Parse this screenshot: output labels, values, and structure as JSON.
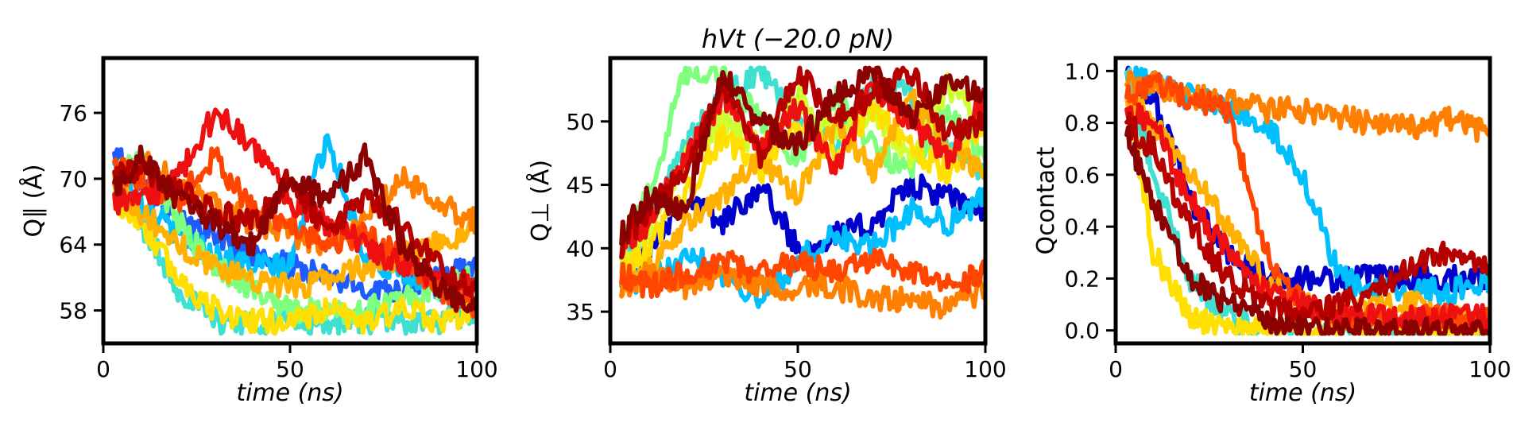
{
  "figure": {
    "title": "hVt (−20.0 pN)"
  },
  "colors": {
    "palette": [
      "#0000cd",
      "#1e5cff",
      "#00bfff",
      "#40e0d0",
      "#7fff7f",
      "#cfff30",
      "#ffe000",
      "#ffb000",
      "#ff7f00",
      "#ff4500",
      "#ee1010",
      "#b50000",
      "#8b0000"
    ]
  },
  "chart_data": [
    {
      "type": "line",
      "title": "",
      "xlabel": "time (ns)",
      "ylabel": "Q∥ (Å)",
      "xlim": [
        0,
        100
      ],
      "ylim": [
        55,
        81
      ],
      "xticks": [
        0,
        50,
        100
      ],
      "yticks": [
        58,
        64,
        70,
        76
      ],
      "xtick_labels": [
        "0",
        "50",
        "100"
      ],
      "ytick_labels": [
        "58",
        "64",
        "70",
        "76"
      ],
      "grid": false,
      "legend": "none",
      "x": [
        3,
        10,
        20,
        30,
        40,
        50,
        60,
        70,
        80,
        90,
        100
      ],
      "series": [
        {
          "color": "#1e5cff",
          "values": [
            72,
            70,
            66,
            65,
            63,
            62,
            61,
            60,
            60,
            61,
            62
          ]
        },
        {
          "color": "#00bfff",
          "values": [
            71,
            68,
            65,
            63,
            62,
            62,
            74,
            63,
            61,
            60,
            60
          ]
        },
        {
          "color": "#40e0d0",
          "values": [
            70,
            66,
            60,
            57,
            57,
            57,
            57,
            57,
            57,
            57,
            58
          ]
        },
        {
          "color": "#7fff7f",
          "values": [
            70,
            72,
            66,
            62,
            60,
            58,
            58,
            58,
            59,
            60,
            61
          ]
        },
        {
          "color": "#ffe000",
          "values": [
            68,
            66,
            61,
            58,
            57,
            57,
            58,
            57,
            58,
            57,
            58
          ]
        },
        {
          "color": "#ffb000",
          "values": [
            70,
            67,
            64,
            62,
            61,
            60,
            61,
            62,
            63,
            64,
            66
          ]
        },
        {
          "color": "#ff7f00",
          "values": [
            69,
            72,
            70,
            68,
            66,
            65,
            64,
            66,
            70,
            68,
            66
          ]
        },
        {
          "color": "#ff4500",
          "values": [
            71,
            70,
            68,
            72,
            67,
            66,
            64,
            65,
            63,
            60,
            58
          ]
        },
        {
          "color": "#ee1010",
          "values": [
            68,
            68,
            70,
            76,
            73,
            68,
            66,
            64,
            62,
            61,
            60
          ]
        },
        {
          "color": "#b50000",
          "values": [
            70,
            71,
            69,
            67,
            66,
            70,
            65,
            68,
            66,
            62,
            60
          ]
        },
        {
          "color": "#8b0000",
          "values": [
            69,
            72,
            68,
            66,
            64,
            70,
            68,
            72,
            64,
            60,
            58
          ]
        }
      ]
    },
    {
      "type": "line",
      "title": "hVt (−20.0 pN)",
      "xlabel": "time (ns)",
      "ylabel": "Q⊥ (Å)",
      "xlim": [
        0,
        100
      ],
      "ylim": [
        32.5,
        55
      ],
      "xticks": [
        0,
        50,
        100
      ],
      "yticks": [
        35,
        40,
        45,
        50
      ],
      "xtick_labels": [
        "0",
        "50",
        "100"
      ],
      "ytick_labels": [
        "35",
        "40",
        "45",
        "50"
      ],
      "grid": false,
      "legend": "none",
      "x": [
        3,
        10,
        20,
        30,
        40,
        50,
        60,
        70,
        80,
        90,
        100
      ],
      "series": [
        {
          "color": "#0000cd",
          "values": [
            38,
            40,
            44,
            42,
            45,
            40,
            41,
            42,
            45,
            44,
            43
          ]
        },
        {
          "color": "#00bfff",
          "values": [
            38,
            37,
            40,
            38,
            36,
            39,
            41,
            40,
            43,
            42,
            44
          ]
        },
        {
          "color": "#40e0d0",
          "values": [
            39,
            42,
            48,
            52,
            54,
            50,
            48,
            53,
            52,
            48,
            46
          ]
        },
        {
          "color": "#7fff7f",
          "values": [
            40,
            44,
            54,
            54,
            50,
            47,
            52,
            48,
            46,
            51,
            47
          ]
        },
        {
          "color": "#cfff30",
          "values": [
            39,
            41,
            47,
            50,
            48,
            52,
            49,
            51,
            47,
            53,
            49
          ]
        },
        {
          "color": "#ffe000",
          "values": [
            38,
            40,
            44,
            49,
            46,
            50,
            47,
            51,
            48,
            46,
            50
          ]
        },
        {
          "color": "#ffb000",
          "values": [
            37,
            38,
            42,
            44,
            47,
            44,
            50,
            46,
            52,
            48,
            46
          ]
        },
        {
          "color": "#ff7f00",
          "values": [
            37,
            38,
            37,
            38,
            37,
            37,
            37,
            36,
            36,
            35,
            37
          ]
        },
        {
          "color": "#ff4500",
          "values": [
            38,
            37,
            38,
            39,
            38,
            39,
            38,
            39,
            38,
            37,
            38
          ]
        },
        {
          "color": "#ee1010",
          "values": [
            40,
            42,
            47,
            52,
            48,
            51,
            46,
            53,
            50,
            47,
            52
          ]
        },
        {
          "color": "#b50000",
          "values": [
            40,
            43,
            46,
            53,
            47,
            54,
            50,
            52,
            54,
            49,
            50
          ]
        },
        {
          "color": "#8b0000",
          "values": [
            41,
            44,
            43,
            54,
            50,
            48,
            52,
            54,
            50,
            53,
            52
          ]
        }
      ]
    },
    {
      "type": "line",
      "title": "",
      "xlabel": "time (ns)",
      "ylabel": "Qcontact",
      "xlim": [
        0,
        100
      ],
      "ylim": [
        -0.05,
        1.05
      ],
      "xticks": [
        0,
        50,
        100
      ],
      "yticks": [
        0.0,
        0.2,
        0.4,
        0.6,
        0.8,
        1.0
      ],
      "xtick_labels": [
        "0",
        "50",
        "100"
      ],
      "ytick_labels": [
        "0.0",
        "0.2",
        "0.4",
        "0.6",
        "0.8",
        "1.0"
      ],
      "grid": false,
      "legend": "none",
      "x": [
        3,
        10,
        20,
        30,
        40,
        50,
        60,
        70,
        80,
        90,
        100
      ],
      "series": [
        {
          "color": "#0000cd",
          "values": [
            1.0,
            0.9,
            0.5,
            0.3,
            0.2,
            0.2,
            0.2,
            0.2,
            0.2,
            0.2,
            0.2
          ]
        },
        {
          "color": "#00bfff",
          "values": [
            1.0,
            0.95,
            0.9,
            0.85,
            0.8,
            0.6,
            0.2,
            0.15,
            0.15,
            0.15,
            0.2
          ]
        },
        {
          "color": "#40e0d0",
          "values": [
            1.0,
            0.6,
            0.2,
            0.05,
            0.0,
            0.0,
            0.0,
            0.0,
            0.0,
            0.0,
            0.0
          ]
        },
        {
          "color": "#ffe000",
          "values": [
            0.95,
            0.3,
            0.05,
            0.0,
            0.0,
            0.0,
            0.0,
            0.0,
            0.0,
            0.0,
            0.0
          ]
        },
        {
          "color": "#ffb000",
          "values": [
            0.9,
            0.8,
            0.6,
            0.4,
            0.2,
            0.1,
            0.05,
            0.1,
            0.1,
            0.05,
            0.05
          ]
        },
        {
          "color": "#ff7f00",
          "values": [
            0.95,
            0.95,
            0.9,
            0.88,
            0.85,
            0.85,
            0.82,
            0.8,
            0.78,
            0.82,
            0.75
          ]
        },
        {
          "color": "#ff4500",
          "values": [
            0.9,
            0.95,
            0.9,
            0.85,
            0.3,
            0.1,
            0.05,
            0.05,
            0.05,
            0.05,
            0.05
          ]
        },
        {
          "color": "#ee1010",
          "values": [
            0.85,
            0.8,
            0.5,
            0.3,
            0.15,
            0.1,
            0.05,
            0.05,
            0.05,
            0.05,
            0.05
          ]
        },
        {
          "color": "#b50000",
          "values": [
            0.8,
            0.7,
            0.4,
            0.2,
            0.1,
            0.05,
            0.1,
            0.15,
            0.25,
            0.3,
            0.25
          ]
        },
        {
          "color": "#8b0000",
          "values": [
            0.75,
            0.5,
            0.2,
            0.1,
            0.05,
            0.0,
            0.0,
            0.0,
            0.0,
            0.0,
            0.0
          ]
        }
      ]
    }
  ]
}
